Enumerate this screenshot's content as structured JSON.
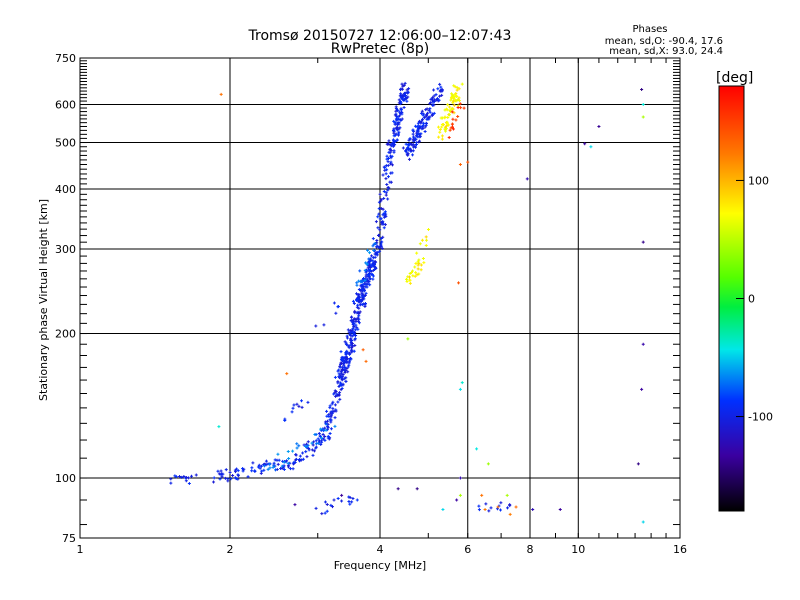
{
  "chart_data": {
    "type": "scatter",
    "title": "Tromsø 20150727 12:06:00–12:07:43",
    "subtitle": "RwPretec (8p)",
    "xlabel": "Frequency [MHz]",
    "ylabel": "Stationary phase Virtual Height [km]",
    "x_scale": "log2",
    "y_scale": "log",
    "xlim": [
      1,
      16
    ],
    "ylim": [
      75,
      750
    ],
    "x_ticks": [
      1,
      2,
      4,
      6,
      8,
      10,
      16
    ],
    "x_tick_labels": [
      "1",
      "2",
      "4",
      "6",
      "8",
      "10",
      "16"
    ],
    "y_ticks": [
      75,
      100,
      200,
      300,
      400,
      500,
      600,
      750
    ],
    "y_tick_labels": [
      "75",
      "100",
      "200",
      "300",
      "400",
      "500",
      "600",
      "750"
    ],
    "grid": true,
    "colorbar": {
      "label": "[deg]",
      "range": [
        -180,
        180
      ],
      "ticks": [
        100,
        0,
        -100
      ],
      "tick_labels": [
        "100",
        "0",
        "-100"
      ]
    },
    "stats": {
      "heading": "Phases",
      "line_o": "mean, sd,O: -90.4, 17.6",
      "line_x": "mean, sd,X:  93.0, 24.4"
    },
    "series": [
      {
        "color_value": -100,
        "segments": [
          {
            "x0": 1.5,
            "x1": 1.72,
            "y0": 98,
            "y1": 100,
            "n": 14
          },
          {
            "x0": 1.85,
            "x1": 2.2,
            "y0": 100,
            "y1": 104,
            "n": 30
          },
          {
            "x0": 2.2,
            "x1": 2.7,
            "y0": 104,
            "y1": 108,
            "n": 45
          },
          {
            "x0": 2.7,
            "x1": 3.1,
            "y0": 108,
            "y1": 122,
            "n": 40
          },
          {
            "x0": 3.1,
            "x1": 3.5,
            "y0": 122,
            "y1": 185,
            "n": 110
          },
          {
            "x0": 3.3,
            "x1": 3.9,
            "y0": 160,
            "y1": 290,
            "n": 220
          },
          {
            "x0": 3.6,
            "x1": 4.05,
            "y0": 230,
            "y1": 330,
            "n": 80
          },
          {
            "x0": 4.0,
            "x1": 4.2,
            "y0": 330,
            "y1": 480,
            "n": 60
          },
          {
            "x0": 4.2,
            "x1": 4.5,
            "y0": 480,
            "y1": 650,
            "n": 120
          },
          {
            "x0": 4.5,
            "x1": 5.3,
            "y0": 470,
            "y1": 650,
            "n": 140
          },
          {
            "x0": 3.0,
            "x1": 3.3,
            "y0": 212,
            "y1": 225,
            "n": 6
          },
          {
            "x0": 2.55,
            "x1": 2.9,
            "y0": 133,
            "y1": 150,
            "n": 10
          },
          {
            "x0": 3.0,
            "x1": 3.6,
            "y0": 86,
            "y1": 90,
            "n": 18
          },
          {
            "x0": 6.3,
            "x1": 7.3,
            "y0": 85,
            "y1": 88,
            "n": 12
          }
        ]
      },
      {
        "color_value": -70,
        "segments": [
          {
            "x0": 2.35,
            "x1": 2.9,
            "y0": 105,
            "y1": 118,
            "n": 20
          },
          {
            "x0": 2.9,
            "x1": 3.2,
            "y0": 118,
            "y1": 130,
            "n": 12
          },
          {
            "x0": 3.6,
            "x1": 3.95,
            "y0": 250,
            "y1": 320,
            "n": 20
          }
        ]
      },
      {
        "color_value": 100,
        "segments": [
          {
            "x0": 4.6,
            "x1": 4.85,
            "y0": 260,
            "y1": 280,
            "n": 25
          },
          {
            "x0": 4.8,
            "x1": 4.95,
            "y0": 285,
            "y1": 330,
            "n": 8
          },
          {
            "x0": 5.3,
            "x1": 5.75,
            "y0": 520,
            "y1": 650,
            "n": 70
          }
        ]
      },
      {
        "color_value": 160,
        "segments": [
          {
            "x0": 5.5,
            "x1": 5.8,
            "y0": 520,
            "y1": 600,
            "n": 15
          }
        ]
      },
      {
        "color_value": 140,
        "points": [
          [
            1.92,
            630
          ],
          [
            2.6,
            165
          ],
          [
            3.7,
            185
          ],
          [
            3.75,
            175
          ],
          [
            6.4,
            92
          ],
          [
            6.5,
            86
          ],
          [
            6.9,
            87
          ],
          [
            7.5,
            87
          ],
          [
            7.3,
            84
          ],
          [
            5.8,
            450
          ],
          [
            5.75,
            255
          ],
          [
            6.0,
            455
          ]
        ]
      },
      {
        "color_value": -130,
        "points": [
          [
            7.9,
            420
          ],
          [
            10.3,
            497
          ],
          [
            11.0,
            540
          ],
          [
            13.4,
            645
          ],
          [
            13.5,
            310
          ],
          [
            13.5,
            190
          ],
          [
            13.4,
            153
          ],
          [
            13.2,
            107
          ],
          [
            9.2,
            86
          ],
          [
            5.8,
            100
          ],
          [
            4.35,
            95
          ],
          [
            5.7,
            90
          ],
          [
            4.75,
            95
          ],
          [
            2.7,
            88
          ],
          [
            3.35,
            92
          ],
          [
            8.1,
            86
          ]
        ]
      },
      {
        "color_value": -40,
        "points": [
          [
            1.9,
            128
          ],
          [
            13.5,
            81
          ],
          [
            5.8,
            153
          ],
          [
            5.85,
            158
          ],
          [
            6.25,
            115
          ],
          [
            10.6,
            490
          ],
          [
            5.35,
            86
          ],
          [
            13.5,
            600
          ]
        ]
      },
      {
        "color_value": 60,
        "points": [
          [
            13.5,
            565
          ],
          [
            4.55,
            195
          ],
          [
            5.8,
            92
          ],
          [
            6.6,
            107
          ],
          [
            7.2,
            92
          ]
        ]
      }
    ]
  }
}
